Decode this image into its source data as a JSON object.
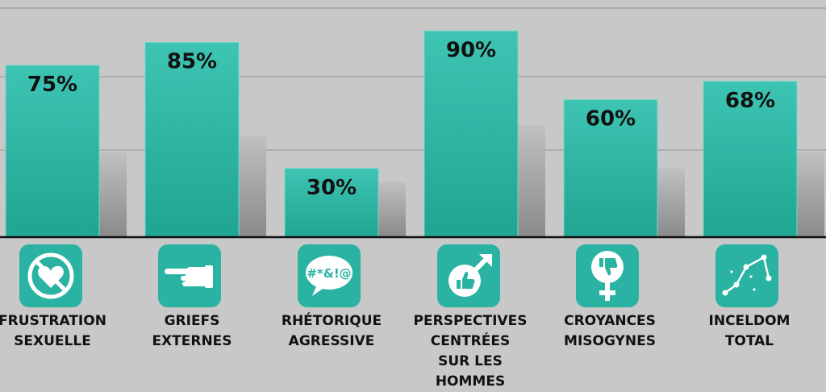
{
  "chart_data": {
    "type": "bar",
    "categories": [
      "FRUSTRATION\nSEXUELLE",
      "GRIEFS\nEXTERNES",
      "RHÉTORIQUE\nAGRESSIVE",
      "PERSPECTIVES\nCENTRÉES\nSUR LES HOMMES",
      "CROYANCES\nMISOGYNES",
      "INCELDOM\nTOTAL"
    ],
    "series": [
      {
        "values": [
          75,
          85,
          30,
          90,
          60,
          68
        ]
      },
      {
        "values": [
          37,
          44,
          24,
          49,
          30,
          37
        ]
      }
    ],
    "data_labels": [
      "75%",
      "85%",
      "30%",
      "90%",
      "60%",
      "68%"
    ],
    "ylim": [
      0,
      100
    ],
    "grid": true,
    "colors": {
      "primary_top": "#3ec4b2",
      "primary_bottom": "#1fa592",
      "secondary_top": "#c0c0c0",
      "secondary_bottom": "#8a8a8a",
      "background": "#c8c8c8",
      "grid": "#9a9a9a",
      "axis": "#111111"
    }
  },
  "icons": [
    "broken-heart-icon",
    "pointing-hand-icon",
    "swear-speech-bubble-icon",
    "male-symbol-thumbs-up-icon",
    "female-symbol-thumbs-down-icon",
    "trend-line-icon"
  ]
}
